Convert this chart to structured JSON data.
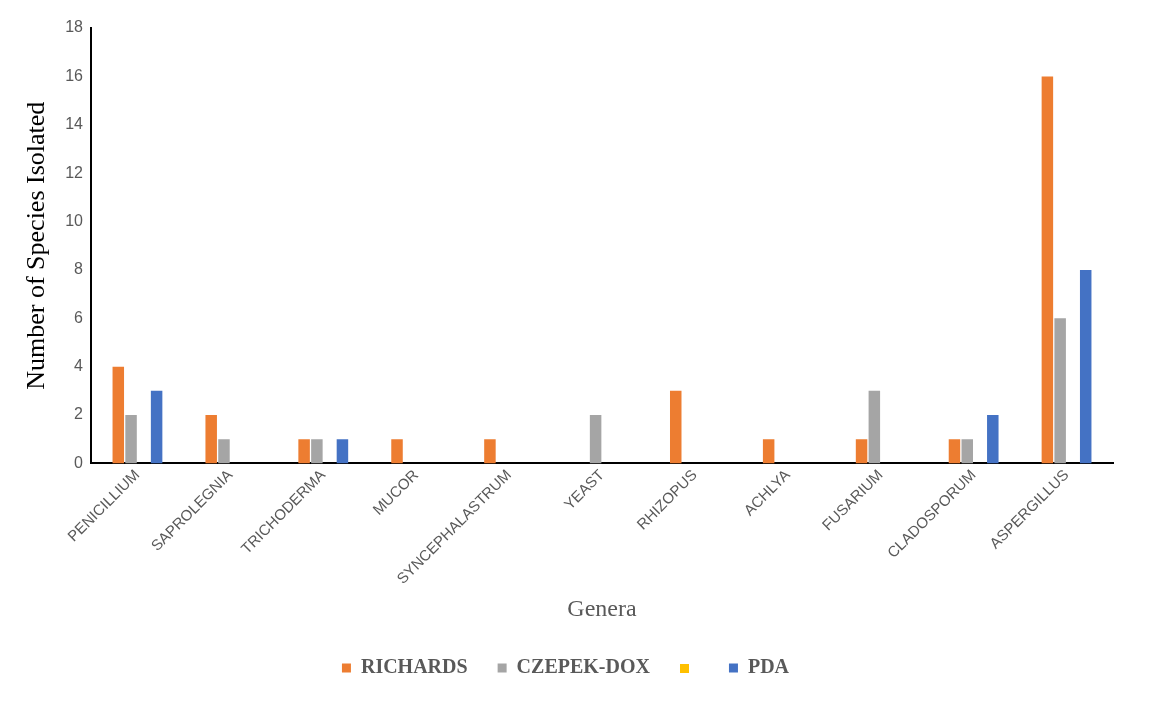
{
  "chart_data": {
    "type": "bar",
    "xlabel": "Genera",
    "ylabel": "Number of Species Isolated",
    "categories": [
      "PENICILLIUM",
      "SAPROLEGNIA",
      "TRICHODERMA",
      "MUCOR",
      "SYNCEPHALASTRUM",
      "YEAST",
      "RHIZOPUS",
      "ACHLYA",
      "FUSARIUM",
      "CLADOSPORUM",
      "ASPERGILLUS"
    ],
    "series": [
      {
        "name": "RICHARDS",
        "color": "#ed7d31",
        "values": [
          4,
          2,
          1,
          1,
          1,
          0,
          3,
          1,
          1,
          1,
          16
        ]
      },
      {
        "name": "CZEPEK-DOX",
        "color": "#a5a5a5",
        "values": [
          2,
          1,
          1,
          0,
          0,
          2,
          0,
          0,
          3,
          1,
          6
        ]
      },
      {
        "color": "#ffc000",
        "values": [
          0,
          0,
          0,
          0,
          0,
          0,
          0,
          0,
          0,
          0,
          0
        ]
      },
      {
        "name": "PDA",
        "color": "#4472c4",
        "values": [
          3,
          0,
          1,
          0,
          0,
          0,
          0,
          0,
          0,
          2,
          8
        ]
      }
    ],
    "ylim": [
      0,
      18
    ],
    "yticks": [
      0,
      2,
      4,
      6,
      8,
      10,
      12,
      14,
      16,
      18
    ],
    "grid": false,
    "legend": "bottom"
  }
}
